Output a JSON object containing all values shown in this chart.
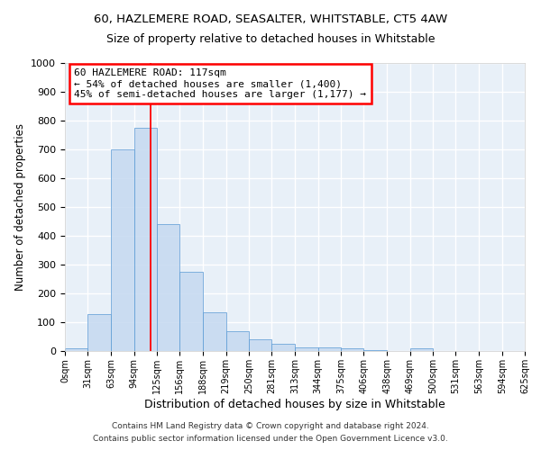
{
  "title1": "60, HAZLEMERE ROAD, SEASALTER, WHITSTABLE, CT5 4AW",
  "title2": "Size of property relative to detached houses in Whitstable",
  "xlabel": "Distribution of detached houses by size in Whitstable",
  "ylabel": "Number of detached properties",
  "bin_edges": [
    0,
    31,
    63,
    94,
    125,
    156,
    188,
    219,
    250,
    281,
    313,
    344,
    375,
    406,
    438,
    469,
    500,
    531,
    563,
    594,
    625
  ],
  "bar_heights": [
    8,
    128,
    700,
    775,
    440,
    275,
    133,
    68,
    40,
    25,
    13,
    12,
    8,
    3,
    0,
    10,
    0,
    0,
    0,
    0
  ],
  "bar_color": "#c5d9f0",
  "bar_edge_color": "#5b9bd5",
  "bar_alpha": 0.85,
  "background_color": "#e8f0f8",
  "grid_color": "#ffffff",
  "red_line_x": 117,
  "annotation_lines": [
    "60 HAZLEMERE ROAD: 117sqm",
    "← 54% of detached houses are smaller (1,400)",
    "45% of semi-detached houses are larger (1,177) →"
  ],
  "ylim": [
    0,
    1000
  ],
  "yticks": [
    0,
    100,
    200,
    300,
    400,
    500,
    600,
    700,
    800,
    900,
    1000
  ],
  "tick_labels": [
    "0sqm",
    "31sqm",
    "63sqm",
    "94sqm",
    "125sqm",
    "156sqm",
    "188sqm",
    "219sqm",
    "250sqm",
    "281sqm",
    "313sqm",
    "344sqm",
    "375sqm",
    "406sqm",
    "438sqm",
    "469sqm",
    "500sqm",
    "531sqm",
    "563sqm",
    "594sqm",
    "625sqm"
  ],
  "footer1": "Contains HM Land Registry data © Crown copyright and database right 2024.",
  "footer2": "Contains public sector information licensed under the Open Government Licence v3.0."
}
